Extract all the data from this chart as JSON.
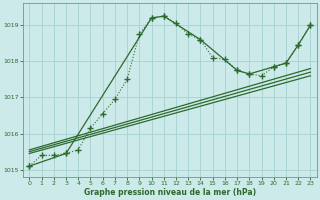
{
  "title": "Graphe pression niveau de la mer (hPa)",
  "background_color": "#cceaea",
  "grid_color": "#aad4d4",
  "line_color": "#2d6a2d",
  "xlim": [
    -0.5,
    23.5
  ],
  "ylim": [
    1014.8,
    1019.6
  ],
  "yticks": [
    1015,
    1016,
    1017,
    1018,
    1019
  ],
  "xticks": [
    0,
    1,
    2,
    3,
    4,
    5,
    6,
    7,
    8,
    9,
    10,
    11,
    12,
    13,
    14,
    15,
    16,
    17,
    18,
    19,
    20,
    21,
    22,
    23
  ],
  "main_x": [
    0,
    1,
    2,
    3,
    4,
    5,
    6,
    7,
    8,
    9,
    10,
    11,
    12,
    13,
    14,
    15,
    16,
    17,
    18,
    19,
    20,
    21,
    22,
    23
  ],
  "main_y": [
    1015.1,
    1015.4,
    1015.4,
    1015.45,
    1015.55,
    1016.15,
    1016.55,
    1016.95,
    1017.5,
    1018.75,
    1019.2,
    1019.25,
    1019.05,
    1018.75,
    1018.6,
    1018.1,
    1018.05,
    1017.75,
    1017.65,
    1017.6,
    1017.85,
    1017.95,
    1018.45,
    1019.0
  ],
  "seg_x": [
    0,
    3,
    10,
    11,
    14,
    17,
    18,
    20,
    21,
    22,
    23
  ],
  "seg_y": [
    1015.1,
    1015.45,
    1019.2,
    1019.25,
    1018.6,
    1017.75,
    1017.65,
    1017.85,
    1017.95,
    1018.45,
    1019.0
  ],
  "trend1_x": [
    0,
    23
  ],
  "trend1_y": [
    1015.45,
    1017.6
  ],
  "trend2_x": [
    0,
    23
  ],
  "trend2_y": [
    1015.5,
    1017.7
  ],
  "trend3_x": [
    0,
    23
  ],
  "trend3_y": [
    1015.55,
    1017.8
  ]
}
